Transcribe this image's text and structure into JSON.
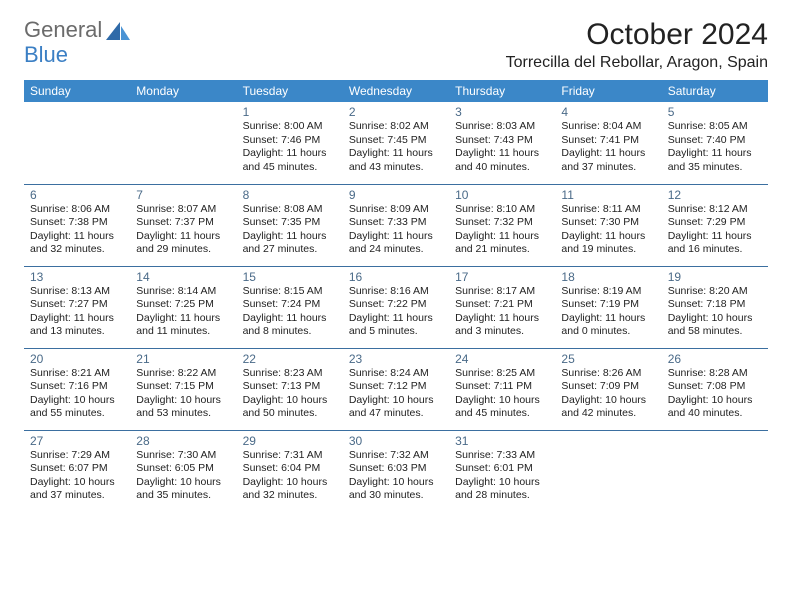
{
  "logo": {
    "gray": "General",
    "blue": "Blue"
  },
  "title": "October 2024",
  "location": "Torrecilla del Rebollar, Aragon, Spain",
  "colors": {
    "header_bg": "#3b87c8",
    "header_text": "#ffffff",
    "row_divider": "#3b6fa0",
    "logo_gray": "#6b6b6b",
    "logo_blue": "#3b7fc4",
    "daynum": "#4a6a88",
    "text": "#222222",
    "background": "#ffffff"
  },
  "weekdays": [
    "Sunday",
    "Monday",
    "Tuesday",
    "Wednesday",
    "Thursday",
    "Friday",
    "Saturday"
  ],
  "weeks": [
    [
      null,
      null,
      {
        "n": "1",
        "sr": "8:00 AM",
        "ss": "7:46 PM",
        "dl": "11 hours and 45 minutes."
      },
      {
        "n": "2",
        "sr": "8:02 AM",
        "ss": "7:45 PM",
        "dl": "11 hours and 43 minutes."
      },
      {
        "n": "3",
        "sr": "8:03 AM",
        "ss": "7:43 PM",
        "dl": "11 hours and 40 minutes."
      },
      {
        "n": "4",
        "sr": "8:04 AM",
        "ss": "7:41 PM",
        "dl": "11 hours and 37 minutes."
      },
      {
        "n": "5",
        "sr": "8:05 AM",
        "ss": "7:40 PM",
        "dl": "11 hours and 35 minutes."
      }
    ],
    [
      {
        "n": "6",
        "sr": "8:06 AM",
        "ss": "7:38 PM",
        "dl": "11 hours and 32 minutes."
      },
      {
        "n": "7",
        "sr": "8:07 AM",
        "ss": "7:37 PM",
        "dl": "11 hours and 29 minutes."
      },
      {
        "n": "8",
        "sr": "8:08 AM",
        "ss": "7:35 PM",
        "dl": "11 hours and 27 minutes."
      },
      {
        "n": "9",
        "sr": "8:09 AM",
        "ss": "7:33 PM",
        "dl": "11 hours and 24 minutes."
      },
      {
        "n": "10",
        "sr": "8:10 AM",
        "ss": "7:32 PM",
        "dl": "11 hours and 21 minutes."
      },
      {
        "n": "11",
        "sr": "8:11 AM",
        "ss": "7:30 PM",
        "dl": "11 hours and 19 minutes."
      },
      {
        "n": "12",
        "sr": "8:12 AM",
        "ss": "7:29 PM",
        "dl": "11 hours and 16 minutes."
      }
    ],
    [
      {
        "n": "13",
        "sr": "8:13 AM",
        "ss": "7:27 PM",
        "dl": "11 hours and 13 minutes."
      },
      {
        "n": "14",
        "sr": "8:14 AM",
        "ss": "7:25 PM",
        "dl": "11 hours and 11 minutes."
      },
      {
        "n": "15",
        "sr": "8:15 AM",
        "ss": "7:24 PM",
        "dl": "11 hours and 8 minutes."
      },
      {
        "n": "16",
        "sr": "8:16 AM",
        "ss": "7:22 PM",
        "dl": "11 hours and 5 minutes."
      },
      {
        "n": "17",
        "sr": "8:17 AM",
        "ss": "7:21 PM",
        "dl": "11 hours and 3 minutes."
      },
      {
        "n": "18",
        "sr": "8:19 AM",
        "ss": "7:19 PM",
        "dl": "11 hours and 0 minutes."
      },
      {
        "n": "19",
        "sr": "8:20 AM",
        "ss": "7:18 PM",
        "dl": "10 hours and 58 minutes."
      }
    ],
    [
      {
        "n": "20",
        "sr": "8:21 AM",
        "ss": "7:16 PM",
        "dl": "10 hours and 55 minutes."
      },
      {
        "n": "21",
        "sr": "8:22 AM",
        "ss": "7:15 PM",
        "dl": "10 hours and 53 minutes."
      },
      {
        "n": "22",
        "sr": "8:23 AM",
        "ss": "7:13 PM",
        "dl": "10 hours and 50 minutes."
      },
      {
        "n": "23",
        "sr": "8:24 AM",
        "ss": "7:12 PM",
        "dl": "10 hours and 47 minutes."
      },
      {
        "n": "24",
        "sr": "8:25 AM",
        "ss": "7:11 PM",
        "dl": "10 hours and 45 minutes."
      },
      {
        "n": "25",
        "sr": "8:26 AM",
        "ss": "7:09 PM",
        "dl": "10 hours and 42 minutes."
      },
      {
        "n": "26",
        "sr": "8:28 AM",
        "ss": "7:08 PM",
        "dl": "10 hours and 40 minutes."
      }
    ],
    [
      {
        "n": "27",
        "sr": "7:29 AM",
        "ss": "6:07 PM",
        "dl": "10 hours and 37 minutes."
      },
      {
        "n": "28",
        "sr": "7:30 AM",
        "ss": "6:05 PM",
        "dl": "10 hours and 35 minutes."
      },
      {
        "n": "29",
        "sr": "7:31 AM",
        "ss": "6:04 PM",
        "dl": "10 hours and 32 minutes."
      },
      {
        "n": "30",
        "sr": "7:32 AM",
        "ss": "6:03 PM",
        "dl": "10 hours and 30 minutes."
      },
      {
        "n": "31",
        "sr": "7:33 AM",
        "ss": "6:01 PM",
        "dl": "10 hours and 28 minutes."
      },
      null,
      null
    ]
  ],
  "labels": {
    "sunrise": "Sunrise: ",
    "sunset": "Sunset: ",
    "daylight": "Daylight: "
  }
}
